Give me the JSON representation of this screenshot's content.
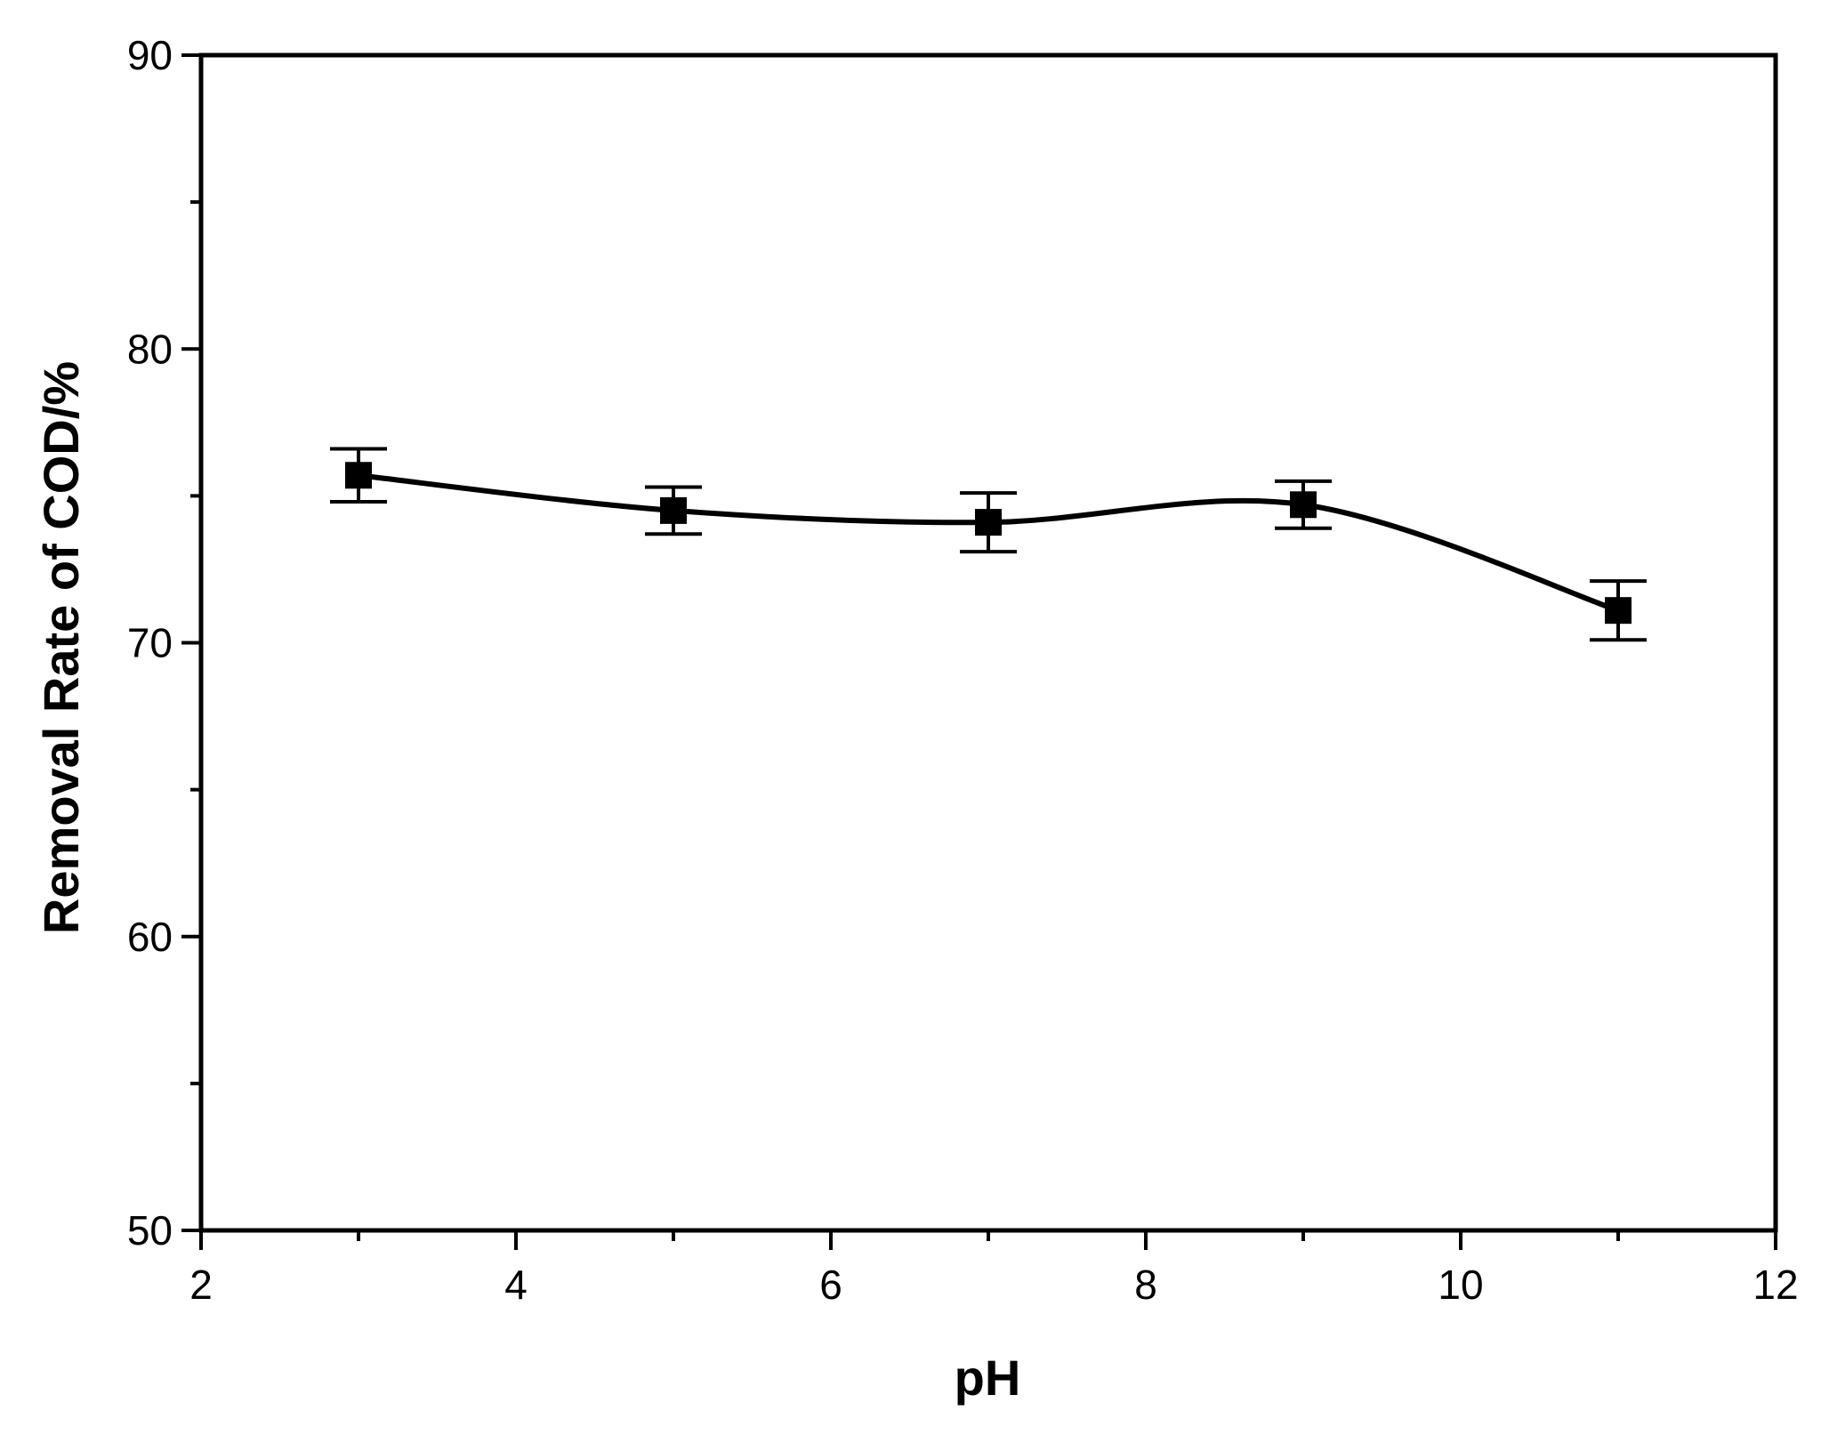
{
  "chart_data": {
    "type": "line",
    "title": "",
    "xlabel": "pH",
    "ylabel": "Removal Rate of COD/%",
    "xlim": [
      2,
      12
    ],
    "ylim": [
      50,
      90
    ],
    "x_ticks": [
      2,
      4,
      6,
      8,
      10,
      12
    ],
    "y_ticks": [
      50,
      60,
      70,
      80,
      90
    ],
    "x_minor_ticks": [
      3,
      5,
      7,
      9,
      11
    ],
    "y_minor_ticks": [
      55,
      65,
      75,
      85
    ],
    "grid": false,
    "series": [
      {
        "x": [
          3,
          5,
          7,
          9,
          11
        ],
        "y": [
          75.7,
          74.5,
          74.1,
          74.7,
          71.1
        ],
        "error": [
          0.9,
          0.8,
          1.0,
          0.8,
          1.0
        ],
        "marker": "square",
        "smooth": true,
        "color": "#000000"
      }
    ]
  }
}
